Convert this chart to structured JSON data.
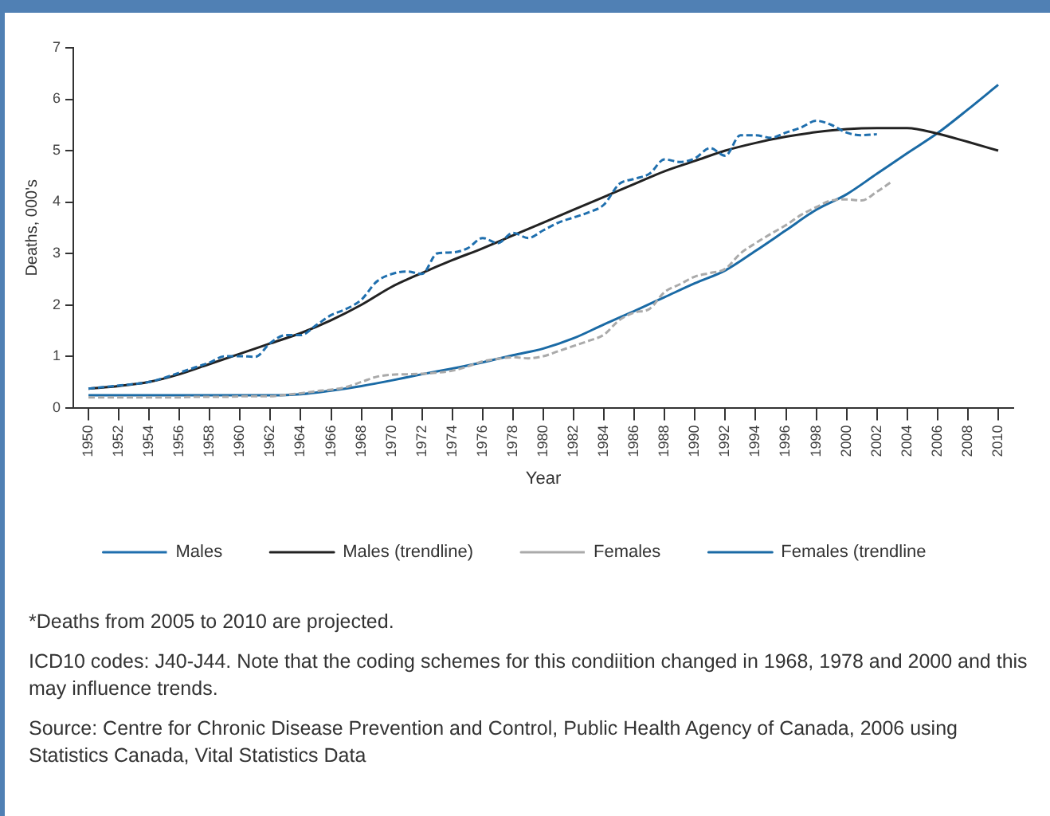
{
  "chart_data": {
    "type": "line",
    "xlabel": "Year",
    "ylabel": "Deaths, 000's",
    "xlim": [
      1949,
      2011
    ],
    "xticks": [
      1950,
      1952,
      1954,
      1956,
      1958,
      1960,
      1962,
      1964,
      1966,
      1968,
      1970,
      1972,
      1974,
      1976,
      1978,
      1980,
      1982,
      1984,
      1986,
      1988,
      1990,
      1992,
      1994,
      1996,
      1998,
      2000,
      2002,
      2004,
      2006,
      2008,
      2010
    ],
    "ylim": [
      0,
      7
    ],
    "yticks": [
      0,
      1,
      2,
      3,
      4,
      5,
      6,
      7
    ],
    "grid": false,
    "legend": "bottom",
    "marker": "none",
    "series": [
      {
        "name": "Males",
        "color": "#1f6fae",
        "line_style": "dashed",
        "x": [
          1950,
          1951,
          1952,
          1953,
          1954,
          1955,
          1956,
          1957,
          1958,
          1959,
          1960,
          1961,
          1962,
          1963,
          1964,
          1965,
          1966,
          1967,
          1968,
          1969,
          1970,
          1971,
          1972,
          1973,
          1974,
          1975,
          1976,
          1977,
          1978,
          1979,
          1980,
          1981,
          1982,
          1983,
          1984,
          1985,
          1986,
          1987,
          1988,
          1989,
          1990,
          1991,
          1992,
          1993,
          1994,
          1995,
          1996,
          1997,
          1998,
          1999,
          2000,
          2001,
          2002
        ],
        "values": [
          0.37,
          0.4,
          0.43,
          0.46,
          0.5,
          0.58,
          0.68,
          0.78,
          0.88,
          1.0,
          1.0,
          0.99,
          1.26,
          1.41,
          1.41,
          1.6,
          1.8,
          1.92,
          2.1,
          2.45,
          2.6,
          2.65,
          2.6,
          3.0,
          3.02,
          3.1,
          3.3,
          3.2,
          3.4,
          3.3,
          3.45,
          3.6,
          3.7,
          3.8,
          3.95,
          4.35,
          4.45,
          4.55,
          4.83,
          4.78,
          4.85,
          5.05,
          4.9,
          5.3,
          5.3,
          5.25,
          5.35,
          5.45,
          5.58,
          5.5,
          5.35,
          5.3,
          5.32
        ]
      },
      {
        "name": "Males (trendline)",
        "color": "#222222",
        "line_style": "solid",
        "x": [
          1950,
          1952,
          1954,
          1956,
          1958,
          1960,
          1962,
          1964,
          1966,
          1968,
          1970,
          1972,
          1974,
          1976,
          1978,
          1980,
          1982,
          1984,
          1986,
          1988,
          1990,
          1992,
          1994,
          1996,
          1998,
          2000,
          2002,
          2004,
          2006,
          2008,
          2010
        ],
        "values": [
          0.37,
          0.42,
          0.5,
          0.65,
          0.85,
          1.05,
          1.25,
          1.45,
          1.7,
          2.0,
          2.35,
          2.62,
          2.87,
          3.1,
          3.35,
          3.6,
          3.85,
          4.1,
          4.35,
          4.6,
          4.8,
          5.0,
          5.15,
          5.27,
          5.36,
          5.42,
          5.44,
          5.44,
          5.33,
          5.17,
          5.0
        ]
      },
      {
        "name": "Females",
        "color": "#aaaaaa",
        "line_style": "dashed",
        "x": [
          1950,
          1951,
          1952,
          1953,
          1954,
          1955,
          1956,
          1957,
          1958,
          1959,
          1960,
          1961,
          1962,
          1963,
          1964,
          1965,
          1966,
          1967,
          1968,
          1969,
          1970,
          1971,
          1972,
          1973,
          1974,
          1975,
          1976,
          1977,
          1978,
          1979,
          1980,
          1981,
          1982,
          1983,
          1984,
          1985,
          1986,
          1987,
          1988,
          1989,
          1990,
          1991,
          1992,
          1993,
          1994,
          1995,
          1996,
          1997,
          1998,
          1999,
          2000,
          2001,
          2002,
          2003
        ],
        "values": [
          0.2,
          0.2,
          0.2,
          0.2,
          0.2,
          0.2,
          0.2,
          0.21,
          0.21,
          0.21,
          0.22,
          0.22,
          0.22,
          0.25,
          0.28,
          0.32,
          0.35,
          0.4,
          0.5,
          0.6,
          0.64,
          0.65,
          0.66,
          0.68,
          0.72,
          0.8,
          0.9,
          0.95,
          0.98,
          0.96,
          1.0,
          1.1,
          1.2,
          1.3,
          1.42,
          1.7,
          1.85,
          1.92,
          2.25,
          2.4,
          2.55,
          2.62,
          2.7,
          3.0,
          3.2,
          3.38,
          3.55,
          3.75,
          3.9,
          4.03,
          4.05,
          4.03,
          4.2,
          4.4
        ]
      },
      {
        "name": "Females (trendline",
        "color": "#1a6aa5",
        "line_style": "solid",
        "x": [
          1950,
          1952,
          1954,
          1956,
          1958,
          1960,
          1962,
          1964,
          1966,
          1968,
          1970,
          1972,
          1974,
          1976,
          1978,
          1980,
          1982,
          1984,
          1986,
          1988,
          1990,
          1992,
          1994,
          1996,
          1998,
          2000,
          2002,
          2004,
          2006,
          2008,
          2010
        ],
        "values": [
          0.24,
          0.24,
          0.24,
          0.24,
          0.24,
          0.24,
          0.24,
          0.26,
          0.33,
          0.42,
          0.53,
          0.65,
          0.76,
          0.88,
          1.02,
          1.15,
          1.35,
          1.62,
          1.88,
          2.15,
          2.42,
          2.67,
          3.05,
          3.45,
          3.85,
          4.15,
          4.55,
          4.95,
          5.34,
          5.8,
          6.28
        ]
      }
    ],
    "annotations": [
      "*Deaths from 2005 to 2010 are projected.",
      "ICD10 codes: J40-J44. Note that the coding schemes for this condiition changed in 1968, 1978 and 2000 and this may influence trends.",
      "Source: Centre for Chronic Disease Prevention and Control, Public Health Agency of Canada, 2006 using Statistics Canada, Vital Statistics Data"
    ]
  }
}
